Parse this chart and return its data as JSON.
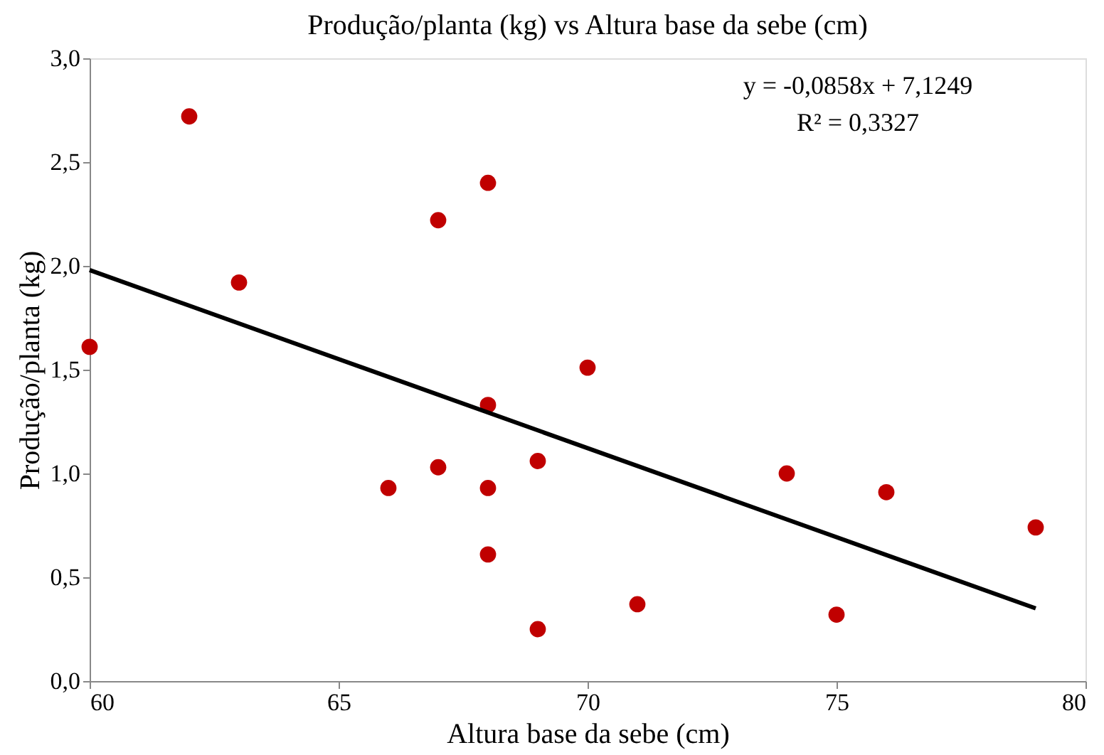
{
  "chart_data": {
    "type": "scatter",
    "title": "Produção/planta (kg) vs Altura base da sebe (cm)",
    "xlabel": "Altura base da sebe (cm)",
    "ylabel": "Produção/planta (kg)",
    "series": [
      {
        "color": "#c00000",
        "marker": "circle",
        "x": [
          60,
          62,
          63,
          66,
          67,
          67,
          68,
          68,
          68,
          68,
          69,
          69,
          70,
          71,
          74,
          75,
          76,
          79
        ],
        "values": [
          1.61,
          2.72,
          1.92,
          0.93,
          2.22,
          1.03,
          2.4,
          1.33,
          0.93,
          0.61,
          1.06,
          0.25,
          1.51,
          0.37,
          1.0,
          0.32,
          0.91,
          0.74
        ]
      },
      {
        "type": "line",
        "color": "#000000",
        "line_style": "solid",
        "x": [
          60,
          79
        ],
        "values": [
          1.98,
          0.35
        ]
      }
    ],
    "xlim": [
      60,
      80
    ],
    "xticks": [
      60,
      65,
      70,
      75,
      80
    ],
    "ylim": [
      0,
      3
    ],
    "yticks": [
      {
        "value": 0,
        "label": "0,0"
      },
      {
        "value": 0.5,
        "label": "0,5"
      },
      {
        "value": 1,
        "label": "1,0"
      },
      {
        "value": 1.5,
        "label": "1,5"
      },
      {
        "value": 2,
        "label": "2,0"
      },
      {
        "value": 2.5,
        "label": "2,5"
      },
      {
        "value": 3,
        "label": "3,0"
      }
    ],
    "annotations": [
      "y = -0,0858x + 7,1249",
      "R² = 0,3327"
    ],
    "grid": false
  }
}
